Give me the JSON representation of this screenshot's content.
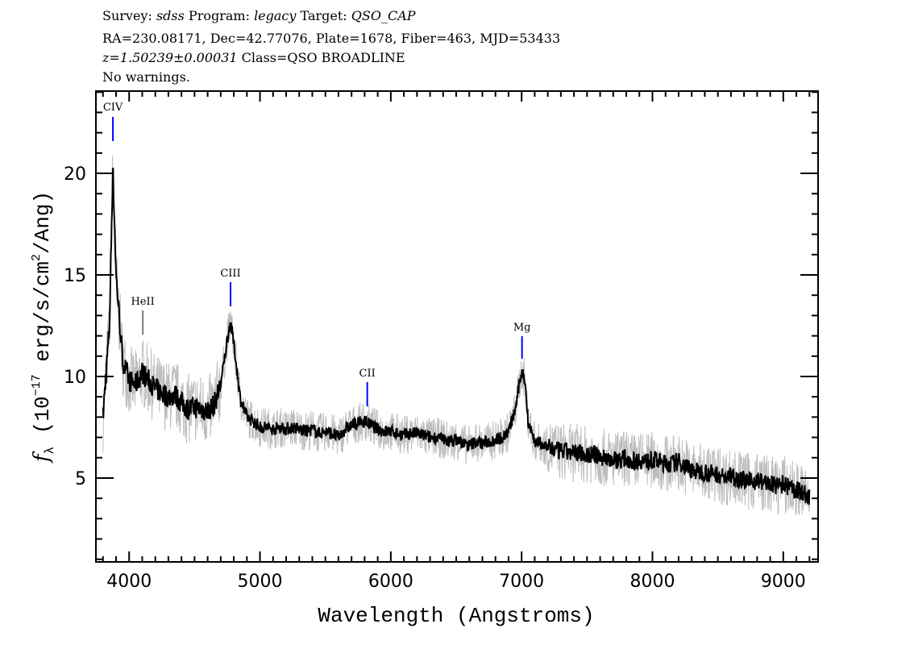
{
  "header": {
    "survey_label": "Survey:",
    "survey": "sdss",
    "program_label": "Program:",
    "program": "legacy",
    "target_label": "Target:",
    "target": "QSO_CAP",
    "line2": "RA=230.08171, Dec=42.77076, Plate=1678, Fiber=463, MJD=53433",
    "redshift": "z=1.50239±0.00031",
    "class": "Class=QSO BROADLINE",
    "warnings": "No warnings."
  },
  "chart_data": {
    "type": "line",
    "xlabel": "Wavelength (Angstroms)",
    "ylabel": {
      "symbol": "f",
      "sub": "λ",
      "text": " (10",
      "exp": "−17",
      "text2": " erg/s/cm",
      "exp2": "2",
      "text3": "/Ang)"
    },
    "xlim": [
      3746,
      9266
    ],
    "ylim": [
      0.87,
      24.05
    ],
    "xticks": [
      4000,
      5000,
      6000,
      7000,
      8000,
      9000
    ],
    "yticks": [
      5,
      10,
      15,
      20
    ],
    "grid": false,
    "colors": {
      "flux": "#000000",
      "error_band": "#bdbdbd",
      "line_marker": "#0000ff",
      "unmatched_marker": "#000000"
    },
    "series": [
      {
        "wavelength": [
          3800,
          3850,
          3875,
          3900,
          3950,
          4000,
          4050,
          4100,
          4150,
          4200,
          4250,
          4300,
          4350,
          4400,
          4450,
          4500,
          4550,
          4600,
          4650,
          4700,
          4750,
          4775,
          4800,
          4850,
          4900,
          4950,
          5000,
          5050,
          5100,
          5150,
          5200,
          5250,
          5300,
          5350,
          5400,
          5450,
          5500,
          5550,
          5600,
          5650,
          5700,
          5750,
          5800,
          5850,
          5900,
          5950,
          6000,
          6050,
          6100,
          6150,
          6200,
          6250,
          6300,
          6350,
          6400,
          6450,
          6500,
          6550,
          6600,
          6650,
          6700,
          6750,
          6800,
          6850,
          6900,
          6950,
          7000,
          7025,
          7050,
          7100,
          7150,
          7200,
          7250,
          7300,
          7350,
          7400,
          7450,
          7500,
          7550,
          7600,
          7650,
          7700,
          7750,
          7800,
          7850,
          7900,
          7950,
          8000,
          8050,
          8100,
          8150,
          8200,
          8250,
          8300,
          8350,
          8400,
          8450,
          8500,
          8550,
          8600,
          8650,
          8700,
          8750,
          8800,
          8850,
          8900,
          8950,
          9000,
          9050,
          9100,
          9150,
          9200
        ],
        "flux": [
          8.0,
          12.5,
          20.4,
          15.0,
          10.8,
          9.8,
          9.6,
          10.2,
          9.8,
          9.4,
          9.2,
          9.0,
          9.1,
          8.7,
          8.4,
          8.5,
          8.4,
          8.3,
          8.6,
          9.6,
          11.8,
          12.7,
          11.6,
          8.9,
          8.0,
          7.8,
          7.5,
          7.5,
          7.4,
          7.5,
          7.4,
          7.5,
          7.4,
          7.3,
          7.4,
          7.2,
          7.3,
          7.2,
          7.0,
          7.4,
          7.6,
          7.7,
          7.8,
          7.6,
          7.4,
          7.3,
          7.3,
          7.2,
          7.1,
          7.2,
          7.2,
          7.1,
          7.0,
          7.0,
          6.9,
          6.8,
          6.9,
          6.7,
          6.6,
          6.8,
          6.7,
          6.8,
          6.9,
          7.0,
          7.3,
          8.3,
          10.3,
          9.8,
          7.8,
          6.8,
          6.7,
          6.5,
          6.4,
          6.3,
          6.3,
          6.2,
          6.3,
          6.1,
          6.2,
          6.0,
          6.0,
          5.9,
          5.9,
          6.0,
          5.8,
          5.9,
          5.8,
          5.9,
          5.8,
          5.7,
          5.7,
          5.8,
          5.6,
          5.4,
          5.3,
          5.3,
          5.2,
          5.2,
          5.0,
          5.1,
          5.0,
          4.9,
          4.8,
          4.9,
          4.8,
          4.7,
          4.6,
          4.7,
          4.5,
          4.4,
          4.3,
          4.0
        ]
      }
    ],
    "annotations": [
      {
        "label": "CIV",
        "wavelength": 3876,
        "matched": true
      },
      {
        "label": "HeII",
        "wavelength": 4104,
        "matched": false
      },
      {
        "label": "CIII",
        "wavelength": 4775,
        "matched": true
      },
      {
        "label": "CII",
        "wavelength": 5820,
        "matched": true
      },
      {
        "label": "Mg",
        "wavelength": 7003,
        "matched": true
      }
    ]
  }
}
